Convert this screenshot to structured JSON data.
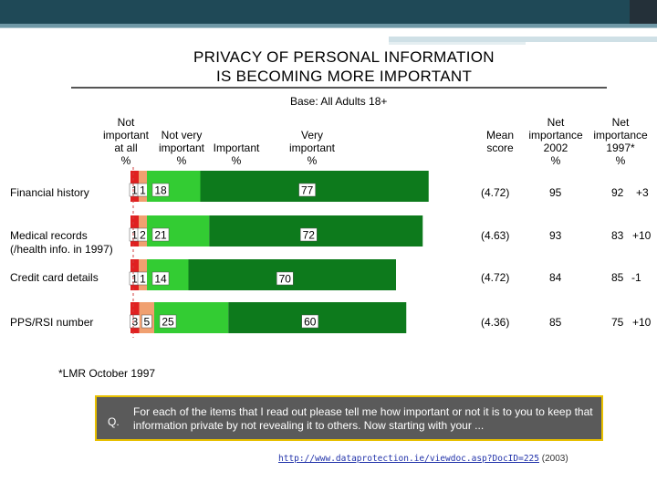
{
  "title": {
    "line1": "PRIVACY OF PERSONAL INFORMATION",
    "line2": "IS BECOMING MORE IMPORTANT"
  },
  "base": "Base: All Adults 18+",
  "headers": {
    "not_important": [
      "Not",
      "important",
      "at all",
      "%"
    ],
    "not_very": [
      "Not very",
      "important",
      "%"
    ],
    "important": [
      "Important",
      "%"
    ],
    "very_important": [
      "Very",
      "important",
      "%"
    ],
    "mean_score": [
      "Mean",
      "score"
    ],
    "net_2002": [
      "Net",
      "importance",
      "2002",
      "%"
    ],
    "net_1997": [
      "Net",
      "importance",
      "1997*",
      "%"
    ]
  },
  "rows": [
    {
      "label": "Financial history",
      "label2": "",
      "mean": "(4.72)",
      "net2002": "95",
      "net1997": "92",
      "change": "+3"
    },
    {
      "label": "Medical records",
      "label2": "(/health info. in 1997)",
      "mean": "(4.63)",
      "net2002": "93",
      "net1997": "83",
      "change": "+10"
    },
    {
      "label": "Credit card details",
      "label2": "",
      "mean": "(4.72)",
      "net2002": "84",
      "net1997": "85",
      "change": "-1"
    },
    {
      "label": "PPS/RSI number",
      "label2": "",
      "mean": "(4.36)",
      "net2002": "85",
      "net1997": "75",
      "change": "+10"
    }
  ],
  "chart_data": {
    "type": "bar",
    "stacked": true,
    "orientation": "horizontal",
    "categories": [
      "Financial history",
      "Medical records",
      "Credit card details",
      "PPS/RSI number"
    ],
    "series": [
      {
        "name": "Not important at all",
        "values": [
          1,
          1,
          1,
          3
        ],
        "color": "#e02020"
      },
      {
        "name": "Not very important",
        "values": [
          1,
          2,
          1,
          5
        ],
        "color": "#f0a070"
      },
      {
        "name": "Important",
        "values": [
          18,
          21,
          14,
          25
        ],
        "color": "#33cc33"
      },
      {
        "name": "Very important",
        "values": [
          77,
          72,
          70,
          60
        ],
        "color": "#0d7a1c"
      }
    ]
  },
  "footnote": "*LMR October 1997",
  "question": {
    "label": "Q.",
    "text": "For each of the items that I read out please tell me how important or not it is to you to keep that information private by not revealing it to others. Now starting with your ..."
  },
  "source": {
    "url": "http://www.dataprotection.ie/viewdoc.asp?DocID=225",
    "year": "(2003)"
  }
}
